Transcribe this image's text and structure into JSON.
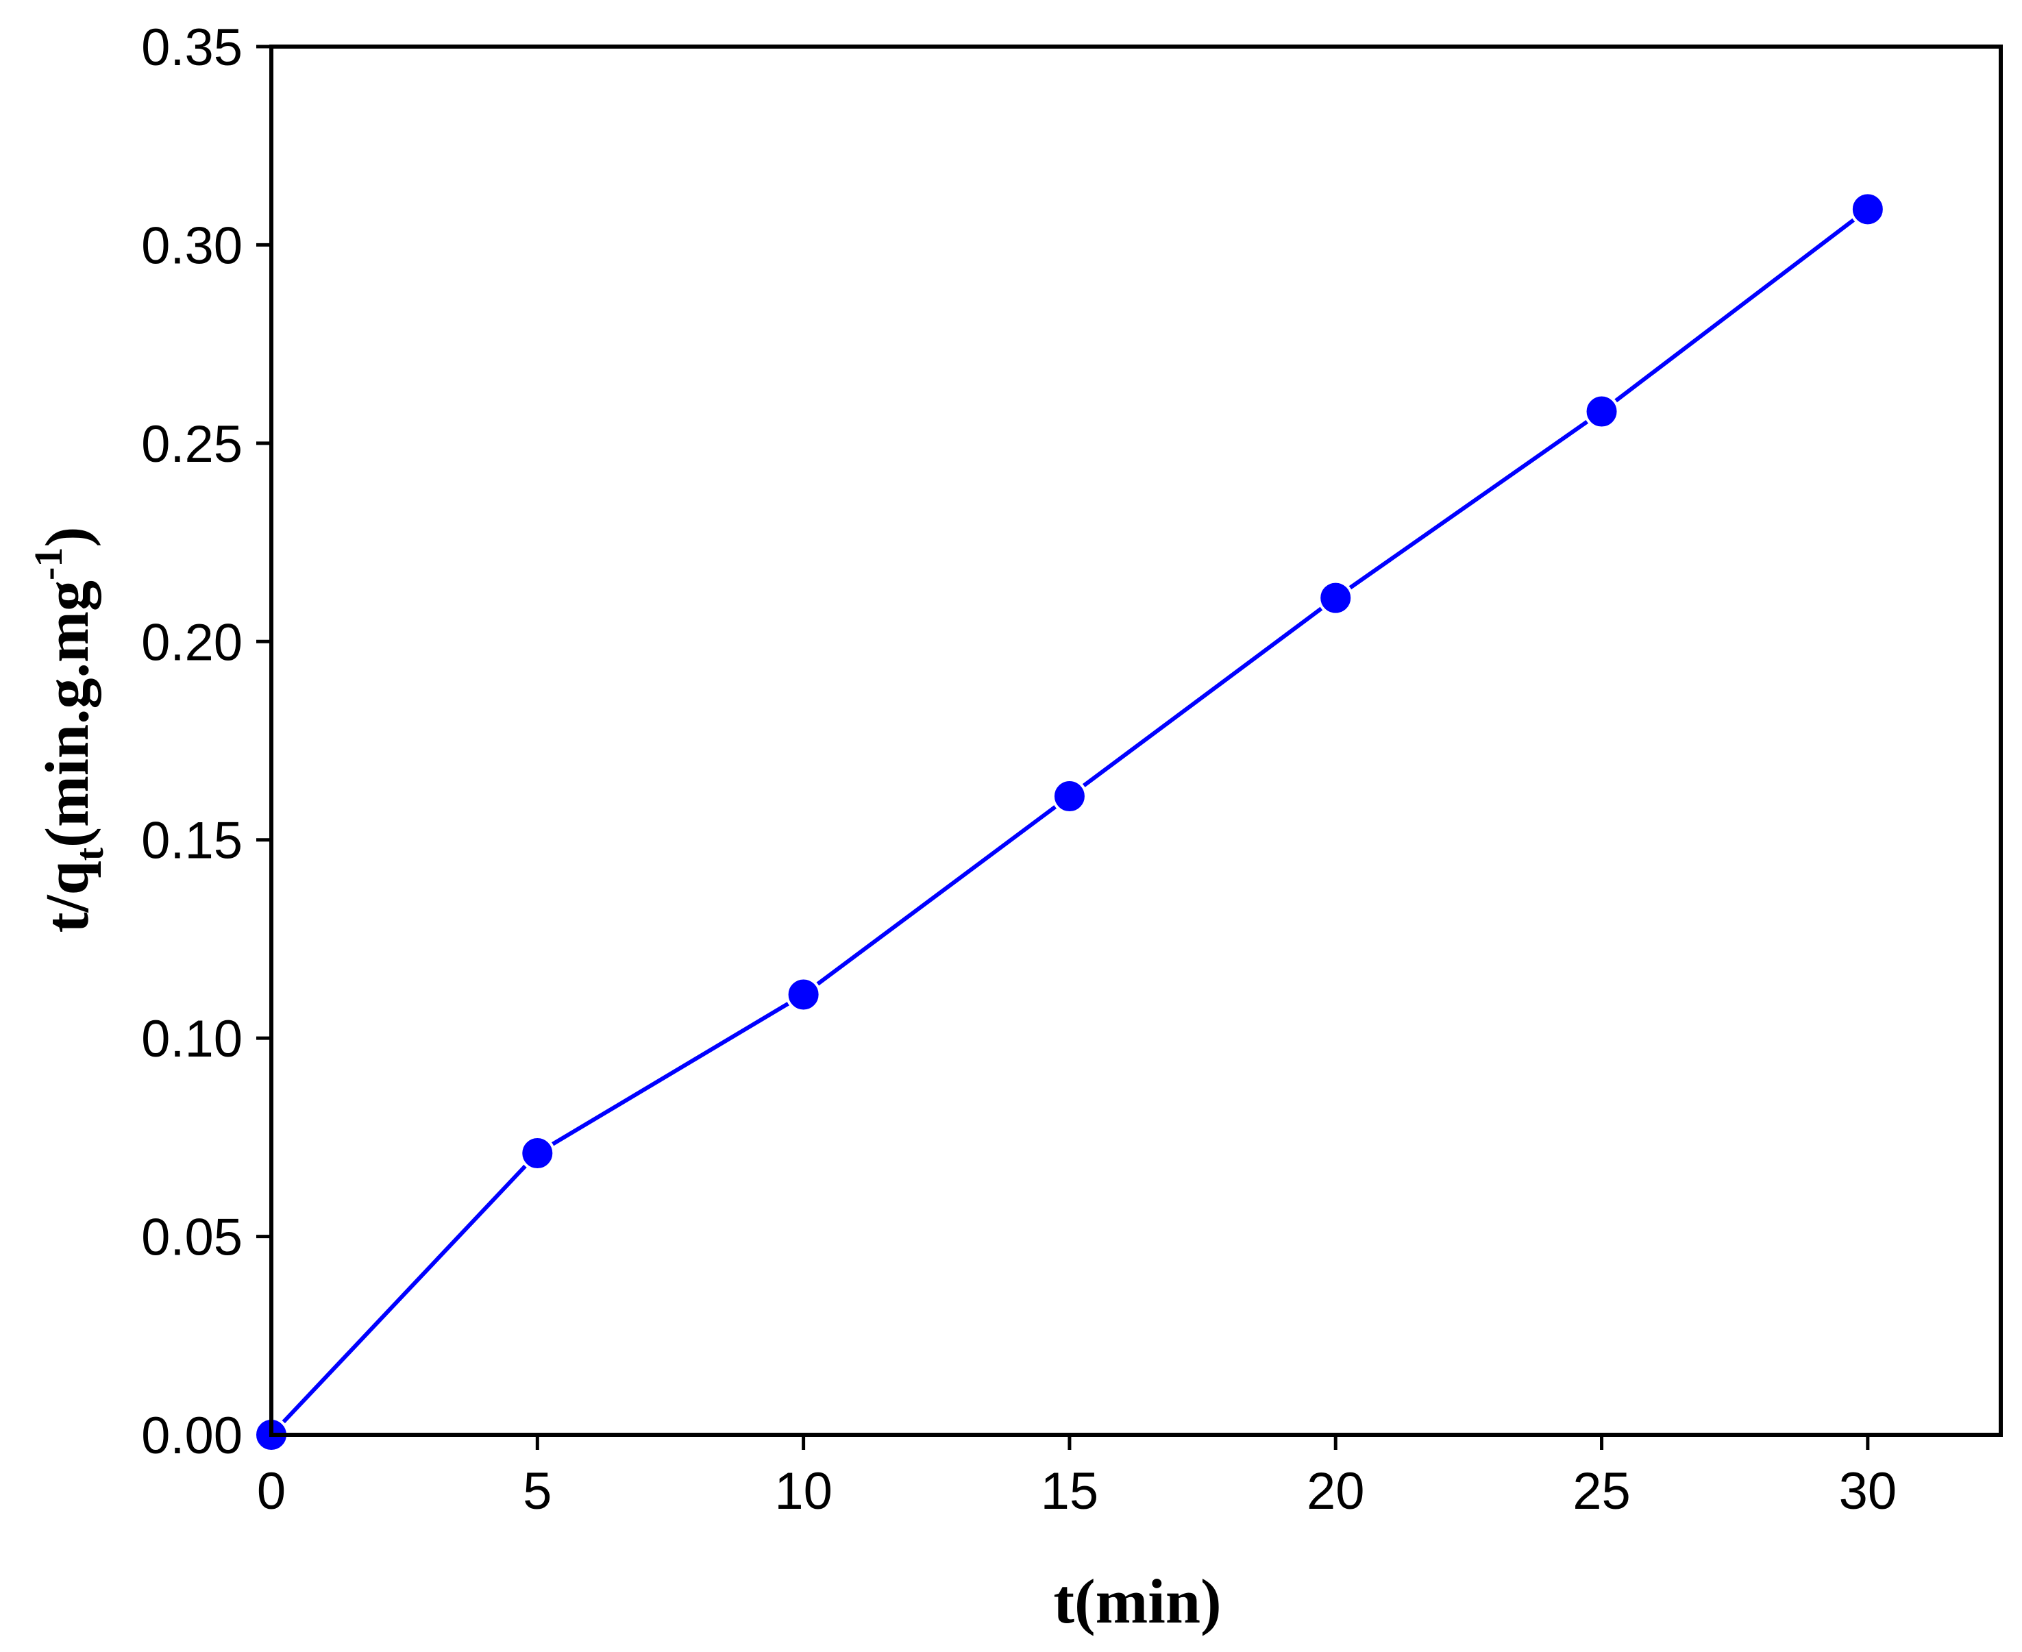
{
  "chart_data": {
    "type": "line",
    "title": "",
    "xlabel": {
      "main": "t(min)"
    },
    "ylabel": {
      "part1": "t/q",
      "sub": "t",
      "part2": "(min.g.mg",
      "sup": "-1",
      "part3": ")"
    },
    "xlim": [
      0,
      32.5
    ],
    "ylim": [
      0,
      0.35
    ],
    "xticks": [
      0,
      5,
      10,
      15,
      20,
      25,
      30
    ],
    "xtick_labels": [
      "0",
      "5",
      "10",
      "15",
      "20",
      "25",
      "30"
    ],
    "yticks": [
      0,
      0.05,
      0.1,
      0.15,
      0.2,
      0.25,
      0.3,
      0.35
    ],
    "ytick_labels": [
      "0.00",
      "0.05",
      "0.10",
      "0.15",
      "0.20",
      "0.25",
      "0.30",
      "0.35"
    ],
    "grid": false,
    "series": [
      {
        "color": "#0000ff",
        "marker": "circle",
        "x": [
          0,
          5,
          10,
          15,
          20,
          25,
          30
        ],
        "y": [
          0.0,
          0.071,
          0.111,
          0.161,
          0.211,
          0.258,
          0.309
        ]
      }
    ]
  }
}
